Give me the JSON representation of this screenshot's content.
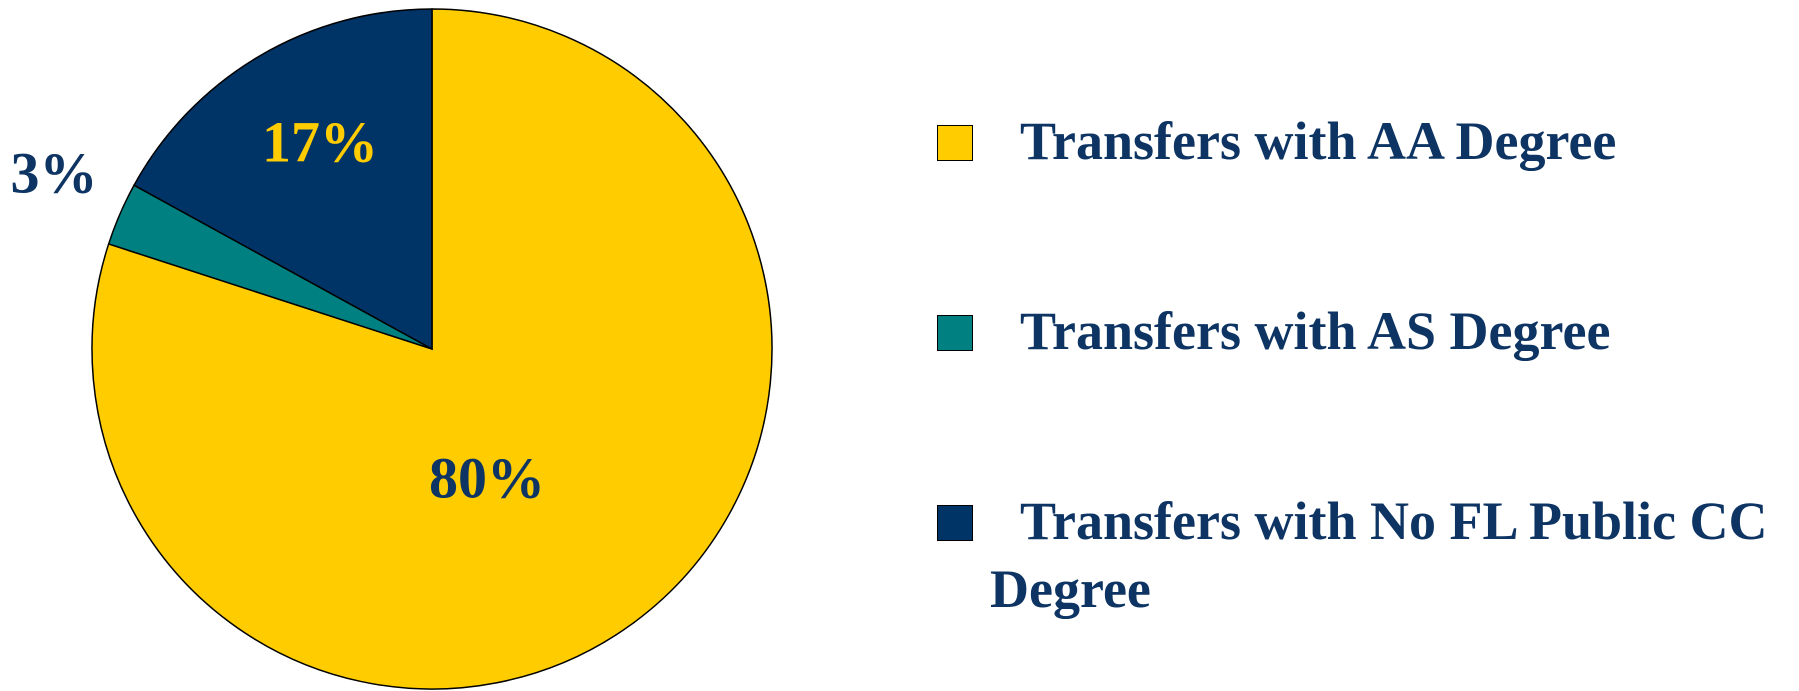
{
  "chart_data": {
    "type": "pie",
    "categories": [
      "Transfers with AA Degree",
      "Transfers with AS Degree",
      "Transfers with No FL Public CC Degree"
    ],
    "values": [
      80,
      3,
      17
    ],
    "value_labels": [
      "80%",
      "3%",
      "17%"
    ],
    "colors": [
      "#ffcc00",
      "#008080",
      "#003366"
    ],
    "label_colors": [
      "#0d3463",
      "#0d3463",
      "#ffcc00"
    ],
    "legend": "right"
  }
}
